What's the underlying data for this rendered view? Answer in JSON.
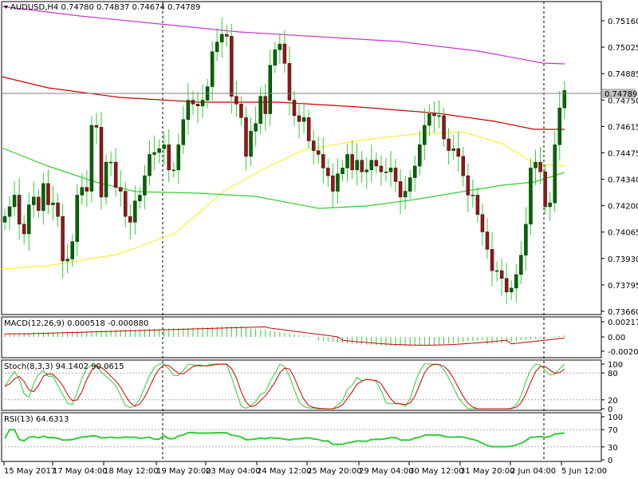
{
  "chart_data": {
    "type": "candlestick",
    "symbol_header": "AUDUSD,H4  0.74780 0.74837 0.74674 0.74789",
    "current_price_label": "0.74789",
    "price_axis_ticks": [
      "0.75160",
      "0.75025",
      "0.74885",
      "0.74750",
      "0.74615",
      "0.74475",
      "0.74340",
      "0.74200",
      "0.74065",
      "0.73930",
      "0.73795",
      "0.73660"
    ],
    "price_ylim": [
      0.7366,
      0.7516
    ],
    "time_axis_ticks": [
      "15 May 2017",
      "17 May 04:00",
      "18 May 12:00",
      "19 May 20:00",
      "23 May 04:00",
      "24 May 12:00",
      "25 May 20:00",
      "29 May 04:00",
      "30 May 12:00",
      "31 May 20:00",
      "2 Jun 04:00",
      "5 Jun 12:00"
    ],
    "grid": false,
    "colors": {
      "up": "#006400",
      "down": "#8b1a1a",
      "ma_magenta": "#cc33cc",
      "ma_red": "#cc0000",
      "ma_yellow": "#ffee33",
      "ma_green": "#33cc33",
      "macd_hist": "#33cc33",
      "macd_signal": "#cc0000",
      "stoch_main": "#33cc33",
      "stoch_signal": "#cc0000",
      "rsi": "#33cc33"
    },
    "candles_close": [
      0.7415,
      0.742,
      0.7426,
      0.7411,
      0.7406,
      0.7421,
      0.7425,
      0.7418,
      0.7432,
      0.7421,
      0.7422,
      0.7415,
      0.7392,
      0.7393,
      0.7402,
      0.7426,
      0.743,
      0.7428,
      0.7462,
      0.7461,
      0.7425,
      0.7443,
      0.7443,
      0.743,
      0.7428,
      0.7415,
      0.7412,
      0.7423,
      0.7426,
      0.7436,
      0.7447,
      0.7448,
      0.745,
      0.7452,
      0.7439,
      0.7439,
      0.7452,
      0.7465,
      0.7475,
      0.7473,
      0.7472,
      0.7475,
      0.7482,
      0.75,
      0.7505,
      0.7509,
      0.7508,
      0.7477,
      0.7473,
      0.7466,
      0.7446,
      0.7459,
      0.7463,
      0.7477,
      0.7468,
      0.7493,
      0.7501,
      0.7504,
      0.7494,
      0.7475,
      0.7467,
      0.7464,
      0.7466,
      0.7454,
      0.7449,
      0.7447,
      0.744,
      0.7436,
      0.7428,
      0.7437,
      0.744,
      0.7447,
      0.7439,
      0.7444,
      0.7438,
      0.7439,
      0.7444,
      0.7441,
      0.7438,
      0.7438,
      0.744,
      0.7433,
      0.7425,
      0.7428,
      0.7435,
      0.7441,
      0.7452,
      0.7462,
      0.7468,
      0.7467,
      0.7467,
      0.7455,
      0.7449,
      0.745,
      0.7446,
      0.7436,
      0.7426,
      0.7426,
      0.7416,
      0.7407,
      0.7398,
      0.7387,
      0.7387,
      0.7383,
      0.7376,
      0.7378,
      0.7385,
      0.7395,
      0.7411,
      0.744,
      0.7443,
      0.7438,
      0.742,
      0.7422,
      0.7452,
      0.7471,
      0.748
    ],
    "macd": {
      "label": "MACD(12,26,9) 0.000518 -0.000880",
      "ticks": [
        "0.002176",
        "0.00",
        "-0.002053"
      ]
    },
    "stoch": {
      "label": "Stoch(8,3,3) 94.1402 90.0615",
      "ticks": [
        "100",
        "80",
        "20",
        "0"
      ]
    },
    "rsi": {
      "label": "RSI(13) 64.6313",
      "ticks": [
        "100",
        "70",
        "30",
        "0"
      ]
    }
  }
}
